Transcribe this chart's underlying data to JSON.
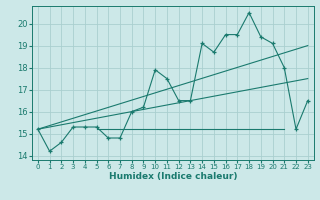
{
  "xlabel": "Humidex (Indice chaleur)",
  "ylabel": "",
  "bg_color": "#cce8e8",
  "grid_color": "#aacfcf",
  "line_color": "#1a7a6e",
  "xlim": [
    -0.5,
    23.5
  ],
  "ylim": [
    13.8,
    20.8
  ],
  "yticks": [
    14,
    15,
    16,
    17,
    18,
    19,
    20
  ],
  "xticks": [
    0,
    1,
    2,
    3,
    4,
    5,
    6,
    7,
    8,
    9,
    10,
    11,
    12,
    13,
    14,
    15,
    16,
    17,
    18,
    19,
    20,
    21,
    22,
    23
  ],
  "main_x": [
    0,
    1,
    2,
    3,
    4,
    5,
    6,
    7,
    8,
    9,
    10,
    11,
    12,
    13,
    14,
    15,
    16,
    17,
    18,
    19,
    20,
    21,
    22,
    23
  ],
  "main_y": [
    15.2,
    14.2,
    14.6,
    15.3,
    15.3,
    15.3,
    14.8,
    14.8,
    16.0,
    16.2,
    17.9,
    17.5,
    16.5,
    16.5,
    19.1,
    18.7,
    19.5,
    19.5,
    20.5,
    19.4,
    19.1,
    18.0,
    15.2,
    16.5
  ],
  "trend1_x": [
    0,
    23
  ],
  "trend1_y": [
    15.2,
    19.0
  ],
  "trend2_x": [
    0,
    23
  ],
  "trend2_y": [
    15.2,
    17.5
  ],
  "hline_x": [
    5,
    21
  ],
  "hline_y": [
    15.2,
    15.2
  ]
}
